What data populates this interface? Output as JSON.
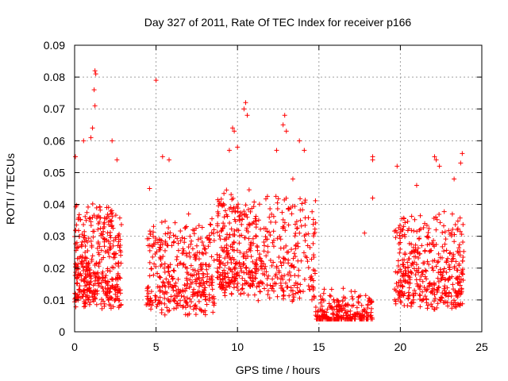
{
  "chart_data": {
    "type": "scatter",
    "title": "Day 327 of 2011, Rate Of TEC Index for receiver p166",
    "xlabel": "GPS time / hours",
    "ylabel": "ROTI / TECUs",
    "xlim": [
      0,
      25
    ],
    "ylim": [
      0,
      0.09
    ],
    "xticks": [
      "0",
      "5",
      "10",
      "15",
      "20",
      "25"
    ],
    "yticks": [
      "0",
      "0.01",
      "0.02",
      "0.03",
      "0.04",
      "0.05",
      "0.06",
      "0.07",
      "0.08",
      "0.09"
    ],
    "grid": true,
    "marker": "+",
    "color": "#ff0000",
    "series": [
      {
        "name": "ROTI p166",
        "clusters": [
          {
            "x_range": [
              0.0,
              2.9
            ],
            "base": 0.018,
            "spread": 0.028,
            "count": 420,
            "highs": [
              [
                1.25,
                0.082
              ],
              [
                1.3,
                0.081
              ],
              [
                1.2,
                0.076
              ],
              [
                1.25,
                0.071
              ],
              [
                1.1,
                0.064
              ],
              [
                1.0,
                0.061
              ],
              [
                0.55,
                0.06
              ],
              [
                2.3,
                0.06
              ],
              [
                0.05,
                0.055
              ],
              [
                2.6,
                0.054
              ]
            ]
          },
          {
            "x_range": [
              4.4,
              8.6
            ],
            "base": 0.016,
            "spread": 0.026,
            "count": 380,
            "highs": [
              [
                5.0,
                0.079
              ],
              [
                5.4,
                0.055
              ],
              [
                5.8,
                0.054
              ],
              [
                4.6,
                0.045
              ],
              [
                7.0,
                0.037
              ]
            ]
          },
          {
            "x_range": [
              8.7,
              11.2
            ],
            "base": 0.022,
            "spread": 0.028,
            "count": 300,
            "highs": [
              [
                10.5,
                0.072
              ],
              [
                10.4,
                0.07
              ],
              [
                10.6,
                0.068
              ],
              [
                9.7,
                0.064
              ],
              [
                9.8,
                0.063
              ],
              [
                10.0,
                0.058
              ],
              [
                9.5,
                0.057
              ]
            ]
          },
          {
            "x_range": [
              11.2,
              14.8
            ],
            "base": 0.02,
            "spread": 0.03,
            "count": 240,
            "highs": [
              [
                12.9,
                0.068
              ],
              [
                12.8,
                0.065
              ],
              [
                13.0,
                0.063
              ],
              [
                13.8,
                0.06
              ],
              [
                14.1,
                0.057
              ],
              [
                12.4,
                0.057
              ],
              [
                13.4,
                0.048
              ]
            ]
          },
          {
            "x_range": [
              14.8,
              18.3
            ],
            "base": 0.01,
            "spread": 0.009,
            "count": 260,
            "highs": [
              [
                18.3,
                0.055
              ],
              [
                18.3,
                0.054
              ],
              [
                18.3,
                0.042
              ],
              [
                17.8,
                0.031
              ]
            ]
          },
          {
            "x_range": [
              19.6,
              23.9
            ],
            "base": 0.018,
            "spread": 0.026,
            "count": 420,
            "highs": [
              [
                19.8,
                0.052
              ],
              [
                22.1,
                0.055
              ],
              [
                22.2,
                0.054
              ],
              [
                22.4,
                0.052
              ],
              [
                23.8,
                0.056
              ],
              [
                23.7,
                0.053
              ],
              [
                21.0,
                0.046
              ],
              [
                23.3,
                0.048
              ]
            ]
          }
        ]
      }
    ]
  }
}
